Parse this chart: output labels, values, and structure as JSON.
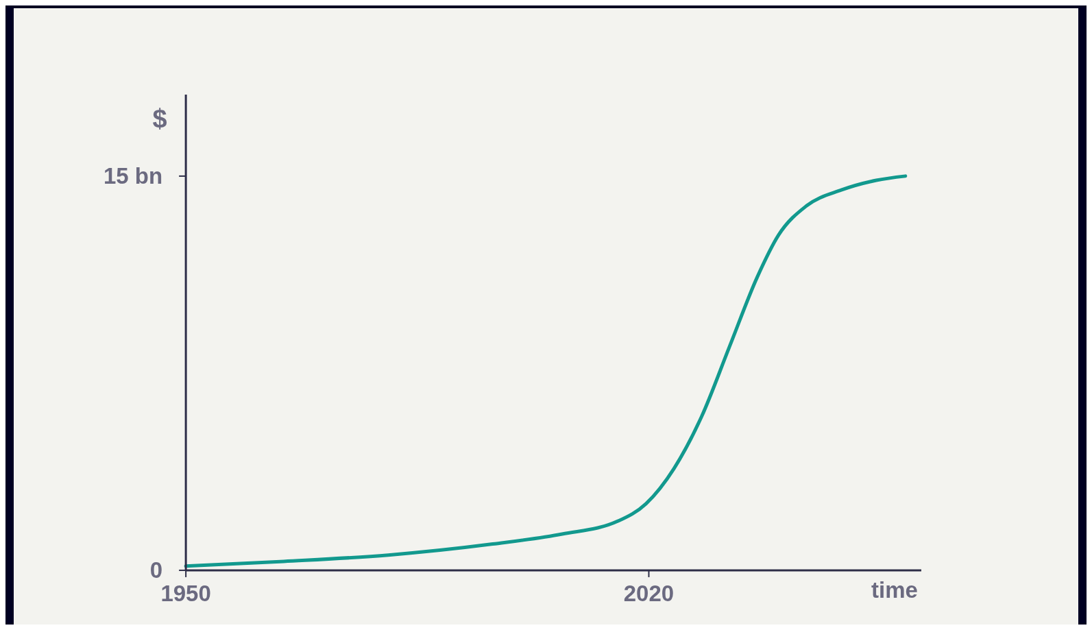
{
  "chart_data": {
    "type": "line",
    "xlabel": "time",
    "ylabel": "$",
    "x": [
      1950,
      1964.8,
      1980.6,
      1996.4,
      2006.9,
      2015.4,
      2019.6,
      2023.8,
      2028,
      2032.2,
      2036.4,
      2039.6,
      2043.8,
      2049.1,
      2054.4,
      2058.8
    ],
    "series": [
      {
        "color": "#12998e",
        "values": [
          0.16,
          0.34,
          0.58,
          1.0,
          1.38,
          1.88,
          2.54,
          3.87,
          5.86,
          8.51,
          11.16,
          12.75,
          13.86,
          14.47,
          14.84,
          15.0
        ]
      }
    ],
    "xlim": [
      1950,
      2061.2
    ],
    "xticks": [
      1950,
      2020
    ],
    "ylim": [
      0,
      18.1
    ],
    "yticks": [
      0,
      {
        "value": 15,
        "label": "15 bn"
      }
    ],
    "grid": false,
    "marker": "none",
    "line_style": "solid"
  }
}
